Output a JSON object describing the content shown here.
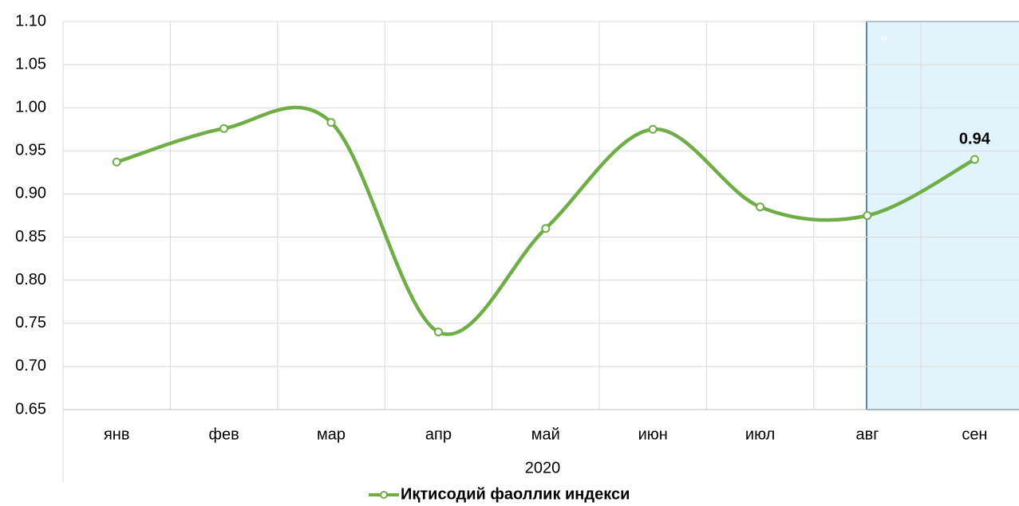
{
  "chart_data": {
    "type": "line",
    "categories": [
      "янв",
      "фев",
      "мар",
      "апр",
      "май",
      "июн",
      "июл",
      "авг",
      "сен"
    ],
    "xlabel": "2020",
    "annotation": "м",
    "series": [
      {
        "name": "Иқтисодий фаоллик индекси",
        "color": "#70ad47",
        "values": [
          0.937,
          0.976,
          0.983,
          0.74,
          0.86,
          0.975,
          0.885,
          0.875,
          0.94
        ],
        "value_labels": [
          null,
          null,
          null,
          null,
          null,
          null,
          null,
          null,
          "0.94"
        ]
      }
    ],
    "ylim": [
      0.65,
      1.1
    ],
    "yticks": [
      {
        "value": 0.65,
        "label": "0.65"
      },
      {
        "value": 0.7,
        "label": "0.70"
      },
      {
        "value": 0.75,
        "label": "0.75"
      },
      {
        "value": 0.8,
        "label": "0.80"
      },
      {
        "value": 0.85,
        "label": "0.85"
      },
      {
        "value": 0.9,
        "label": "0.90"
      },
      {
        "value": 0.95,
        "label": "0.95"
      },
      {
        "value": 1.0,
        "label": "1.00"
      },
      {
        "value": 1.05,
        "label": "1.05"
      },
      {
        "value": 1.1,
        "label": "1.10"
      }
    ],
    "grid": true,
    "smooth": true,
    "legend": "bottom"
  }
}
